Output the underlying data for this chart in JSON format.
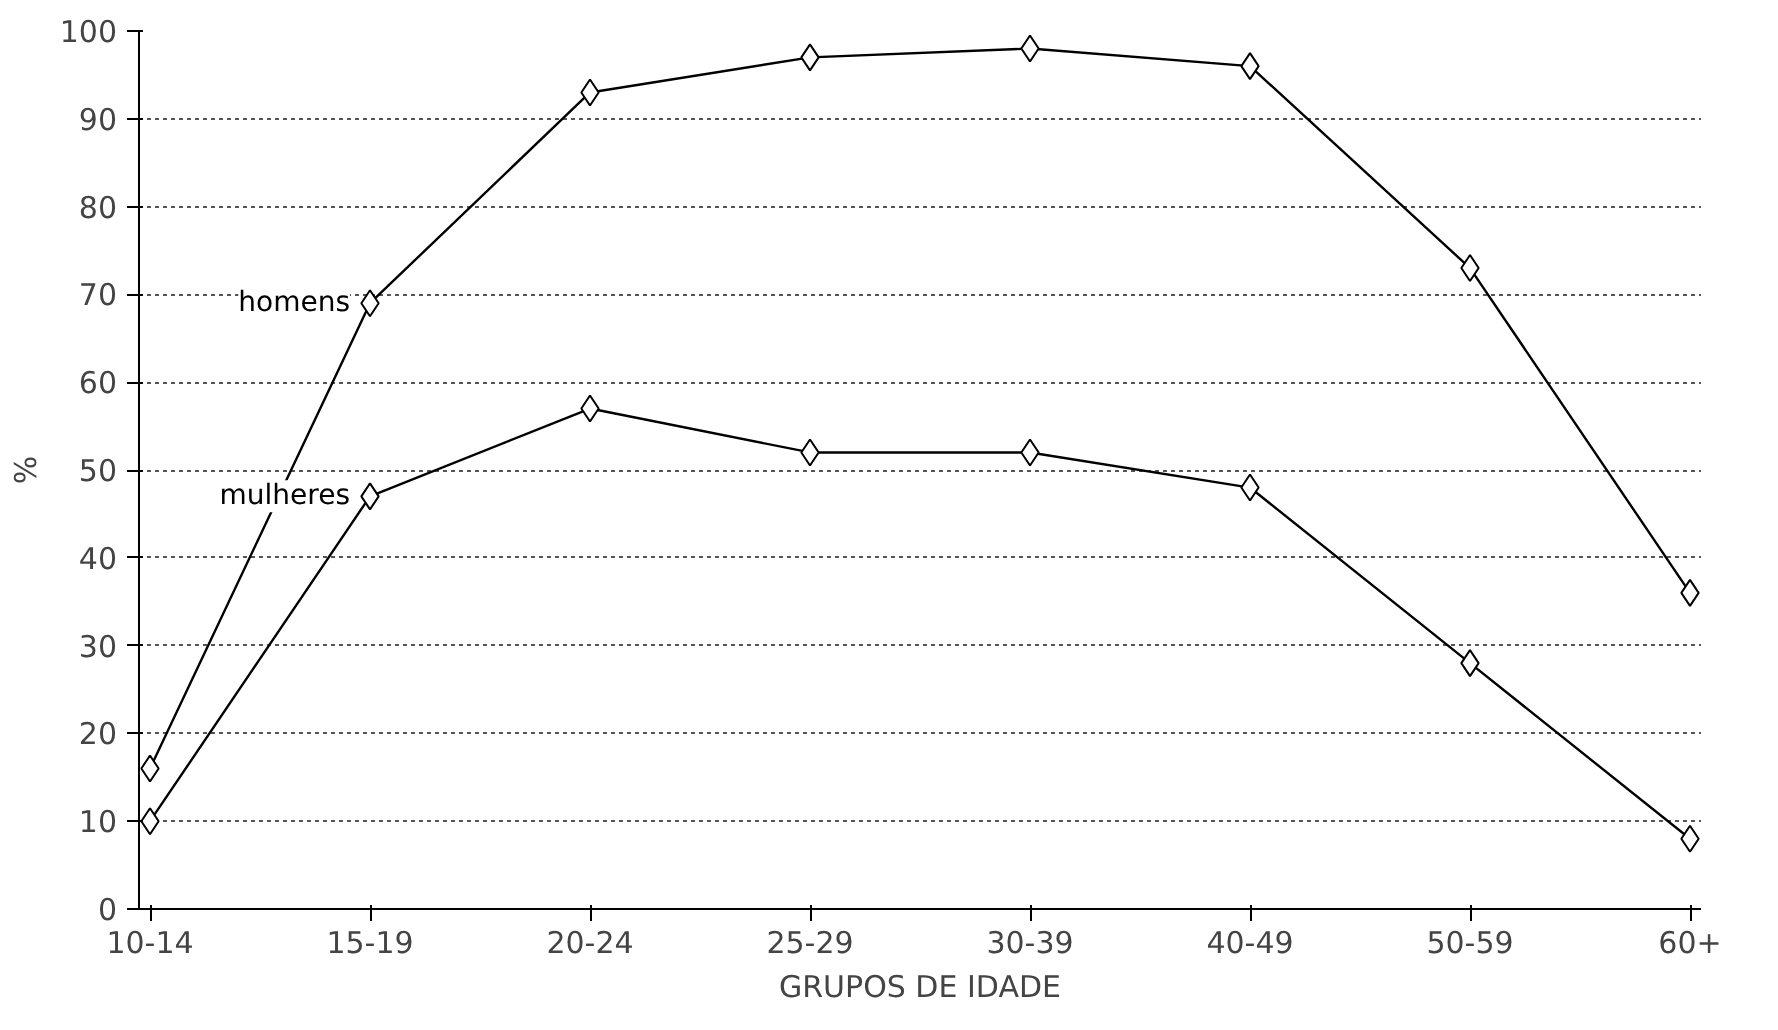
{
  "chart_data": {
    "type": "line",
    "categories": [
      "10-14",
      "15-19",
      "20-24",
      "25-29",
      "30-39",
      "40-49",
      "50-59",
      "60+"
    ],
    "series": [
      {
        "name": "homens",
        "color": "#000000",
        "values": [
          16,
          69,
          93,
          97,
          98,
          96,
          73,
          36
        ]
      },
      {
        "name": "mulheres",
        "color": "#000000",
        "values": [
          10,
          47,
          57,
          52,
          52,
          48,
          28,
          8
        ]
      }
    ],
    "ylabel": "%",
    "xlabel": "GRUPOS DE IDADE",
    "ylim": [
      0,
      100
    ],
    "yticks": [
      0,
      10,
      20,
      30,
      40,
      50,
      60,
      70,
      80,
      90,
      100
    ],
    "grid": "y",
    "marker": "diamond",
    "line_style": "solid"
  }
}
